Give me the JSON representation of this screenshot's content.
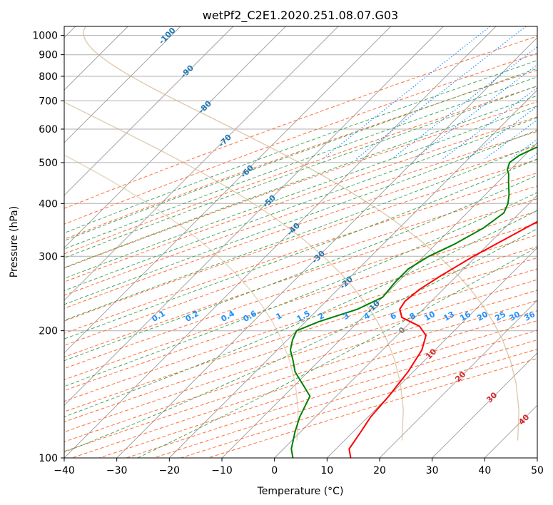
{
  "chart_data": {
    "type": "line",
    "title": "wetPf2_C2E1.2020.251.08.07.G03",
    "xlabel": "Temperature (°C)",
    "ylabel": "Pressure (hPa)",
    "xlim": [
      -40,
      50
    ],
    "ylim": [
      1050,
      100
    ],
    "y_scale": "log",
    "grid": true,
    "x_ticks": [
      "−40",
      "−30",
      "−20",
      "−10",
      "0",
      "10",
      "20",
      "30",
      "40",
      "50"
    ],
    "y_ticks": [
      "100",
      "200",
      "300",
      "400",
      "500",
      "600",
      "700",
      "800",
      "900",
      "1000"
    ],
    "series": [
      {
        "color": "#ff0000",
        "pressure": [
          850,
          800,
          760,
          700,
          650,
          600,
          550,
          500,
          450,
          400,
          350,
          300,
          270,
          250,
          235,
          225,
          215,
          205,
          195,
          180,
          160,
          140,
          125,
          115,
          105,
          100
        ],
        "values": [
          16.8,
          17.2,
          16.8,
          15.5,
          14.8,
          13.5,
          12.5,
          11.0,
          9.5,
          8.0,
          4.0,
          -0.5,
          -3.0,
          -4.5,
          -5.0,
          -4.5,
          -2.5,
          2.5,
          5.5,
          7.5,
          9.0,
          10.0,
          10.5,
          11.5,
          12.5,
          14.5
        ]
      },
      {
        "color": "#008000",
        "pressure": [
          850,
          840,
          830,
          815,
          800,
          790,
          780,
          770,
          760,
          750,
          740,
          720,
          700,
          690,
          680,
          660,
          640,
          620,
          600,
          590,
          580,
          560,
          540,
          520,
          500,
          480,
          470,
          450,
          420,
          400,
          380,
          350,
          320,
          300,
          280,
          260,
          240,
          225,
          210,
          200,
          190,
          180,
          170,
          160,
          140,
          125,
          115,
          105,
          100
        ],
        "values": [
          -14.5,
          -16.5,
          -12.0,
          -9.5,
          -10.5,
          -14.0,
          -18.5,
          -17.5,
          -13.0,
          -6.5,
          -5.5,
          -5.0,
          -5.5,
          -5.0,
          -4.5,
          -4.0,
          -2.5,
          -1.0,
          -2.0,
          -3.5,
          -5.0,
          -7.5,
          -9.5,
          -11.0,
          -11.5,
          -10.5,
          -9.5,
          -8.0,
          -5.5,
          -4.0,
          -3.0,
          -4.0,
          -6.5,
          -9.0,
          -10.5,
          -10.5,
          -10.0,
          -12.5,
          -17.5,
          -20.0,
          -19.0,
          -17.5,
          -15.0,
          -12.5,
          -5.0,
          -3.0,
          -1.0,
          1.5,
          3.5
        ]
      }
    ],
    "mixing_ratio_labels": [
      "0.1",
      "0.2",
      "0.4",
      "0.6",
      "1",
      "1.5",
      "2",
      "3",
      "4",
      "6",
      "8",
      "10",
      "13",
      "16",
      "20",
      "25",
      "30",
      "36"
    ],
    "mixing_ratio_values": [
      0.1,
      0.2,
      0.4,
      0.6,
      1,
      1.5,
      2,
      3,
      4,
      6,
      8,
      10,
      13,
      16,
      20,
      25,
      30,
      36
    ],
    "dry_adiabat_labels": [
      "-100",
      "-90",
      "-80",
      "-70",
      "-60",
      "-50",
      "-40",
      "-30",
      "-20",
      "-10"
    ],
    "moist_adiabat_labels": [
      "0",
      "10",
      "20",
      "30",
      "40"
    ],
    "colors": {
      "temperature": "#ff0000",
      "dewpoint": "#008000",
      "dry_adiabat": "#ff6f3c",
      "moist_adiabat": "#3ca04f",
      "mixing_ratio": "#1e90ff",
      "isotherm": "#808080",
      "dry_label": "#1f77b4",
      "mixing_label": "#1e90ff",
      "zero_label": "#808080",
      "moist_label": "#d62728",
      "trapezoid_curve": "#d2b48c"
    }
  }
}
